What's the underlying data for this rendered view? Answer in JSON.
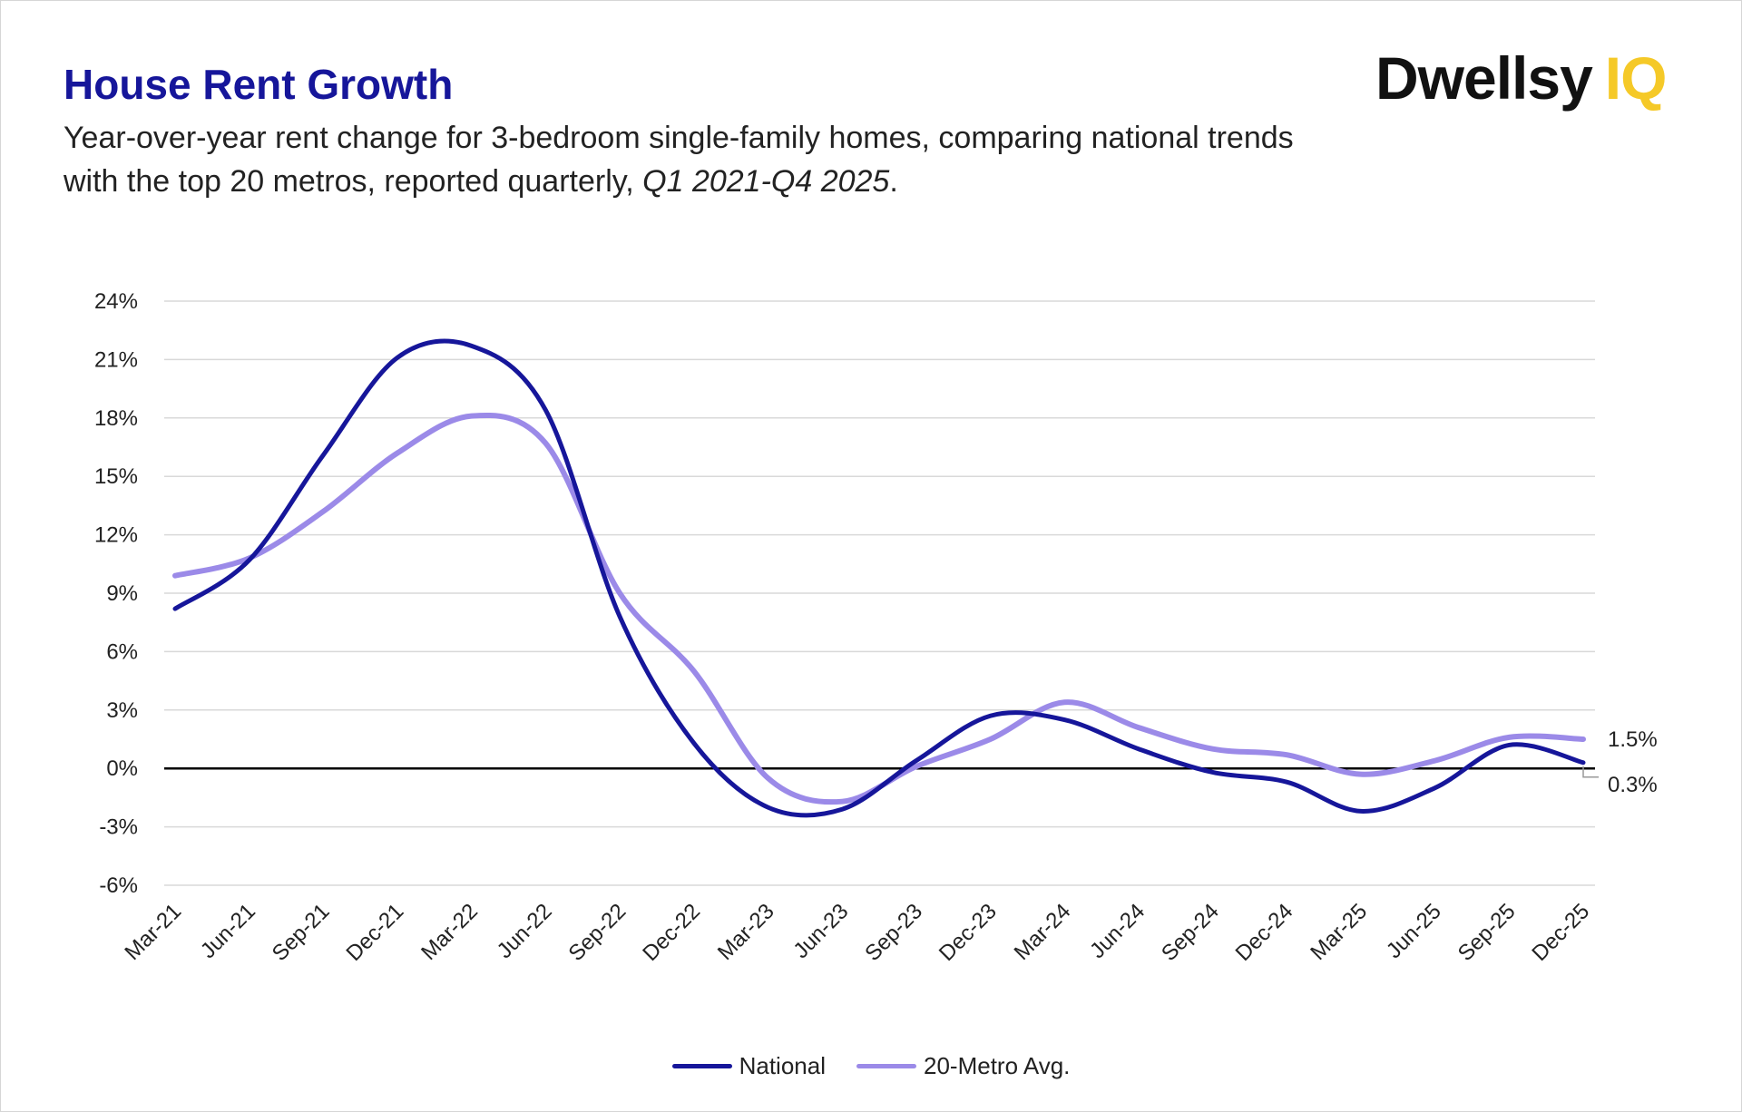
{
  "title": "House Rent Growth",
  "subtitle_main": "Year-over-year rent change for 3-bedroom single-family homes, comparing national trends with the top 20 metros, reported quarterly, ",
  "subtitle_period": "Q1 2021-Q4 2025",
  "subtitle_end": ".",
  "logo": {
    "text": "Dwellsy",
    "suffix": "IQ",
    "colors": {
      "text": "#111111",
      "suffix": "#f5c928"
    }
  },
  "chart_data": {
    "type": "line",
    "title": "House Rent Growth",
    "xlabel": "",
    "ylabel": "",
    "ylim": [
      -6,
      24
    ],
    "yticks": [
      24,
      21,
      18,
      15,
      12,
      9,
      6,
      3,
      0,
      -3,
      -6
    ],
    "ytick_labels": [
      "24%",
      "21%",
      "18%",
      "15%",
      "12%",
      "9%",
      "6%",
      "3%",
      "0%",
      "-3%",
      "-6%"
    ],
    "grid": true,
    "legend": "bottom",
    "smooth": true,
    "categories": [
      "Mar-21",
      "Jun-21",
      "Sep-21",
      "Dec-21",
      "Mar-22",
      "Jun-22",
      "Sep-22",
      "Dec-22",
      "Mar-23",
      "Jun-23",
      "Sep-23",
      "Dec-23",
      "Mar-24",
      "Jun-24",
      "Sep-24",
      "Dec-24",
      "Mar-25",
      "Jun-25",
      "Sep-25",
      "Dec-25"
    ],
    "series": [
      {
        "name": "National",
        "color": "#16169a",
        "values": [
          8.2,
          10.7,
          16.1,
          21.1,
          21.7,
          18.4,
          7.8,
          1.3,
          -2.0,
          -2.1,
          0.4,
          2.7,
          2.5,
          1.0,
          -0.2,
          -0.7,
          -2.2,
          -1.0,
          1.2,
          0.3
        ],
        "end_label": "0.3%"
      },
      {
        "name": "20-Metro Avg.",
        "color": "#9b8ae8",
        "values": [
          9.9,
          10.8,
          13.2,
          16.2,
          18.1,
          16.7,
          9.0,
          5.0,
          -0.5,
          -1.7,
          0.1,
          1.5,
          3.4,
          2.1,
          1.0,
          0.7,
          -0.3,
          0.4,
          1.6,
          1.5
        ],
        "end_label": "1.5%"
      }
    ]
  }
}
